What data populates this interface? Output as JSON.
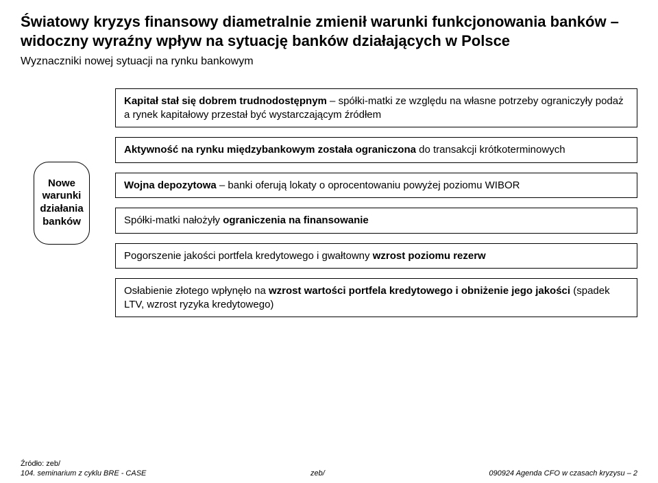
{
  "title_line1": "Światowy kryzys finansowy diametralnie zmienił warunki funkcjonowania banków – widoczny wyraźny wpływ na sytuację banków działających w Polsce",
  "subtitle": "Wyznaczniki nowej sytuacji na rynku bankowym",
  "pill": {
    "line1": "Nowe",
    "line2": "warunki",
    "line3": "działania",
    "line4": "banków"
  },
  "boxes": [
    {
      "segments": [
        {
          "text": "Kapitał stał się dobrem trudnodostępnym",
          "bold": true
        },
        {
          "text": " – spółki-matki ze względu na własne potrzeby ograniczyły podaż a rynek kapitałowy przestał być wystarczającym źródłem",
          "bold": false
        }
      ]
    },
    {
      "segments": [
        {
          "text": "Aktywność na rynku międzybankowym została ograniczona",
          "bold": true
        },
        {
          "text": " do transakcji krótkoterminowych",
          "bold": false
        }
      ]
    },
    {
      "segments": [
        {
          "text": "Wojna depozytowa",
          "bold": true
        },
        {
          "text": " – banki oferują lokaty o oprocentowaniu powyżej poziomu WIBOR",
          "bold": false
        }
      ]
    },
    {
      "segments": [
        {
          "text": "Spółki-matki nałożyły ",
          "bold": false
        },
        {
          "text": "ograniczenia na finansowanie",
          "bold": true
        }
      ]
    },
    {
      "segments": [
        {
          "text": "Pogorszenie jakości portfela kredytowego i gwałtowny ",
          "bold": false
        },
        {
          "text": "wzrost poziomu rezerw",
          "bold": true
        }
      ]
    },
    {
      "segments": [
        {
          "text": "Osłabienie złotego wpłynęło na ",
          "bold": false
        },
        {
          "text": "wzrost wartości portfela kredytowego i obniżenie jego jakości",
          "bold": true
        },
        {
          "text": " (spadek LTV, wzrost ryzyka kredytowego)",
          "bold": false
        }
      ]
    }
  ],
  "footer": {
    "source": "Źródło: zeb/",
    "left": "104. seminarium z cyklu BRE - CASE",
    "center": "zeb/",
    "right": "090924 Agenda CFO w czasach kryzysu – 2"
  },
  "style": {
    "title_fontsize": 22,
    "subtitle_fontsize": 16,
    "box_fontsize": 15,
    "pill_fontsize": 15,
    "footer_fontsize": 11,
    "text_color": "#000000",
    "background_color": "#ffffff",
    "border_color": "#000000",
    "box_border_width": 1.5,
    "pill_border_radius": 22
  }
}
